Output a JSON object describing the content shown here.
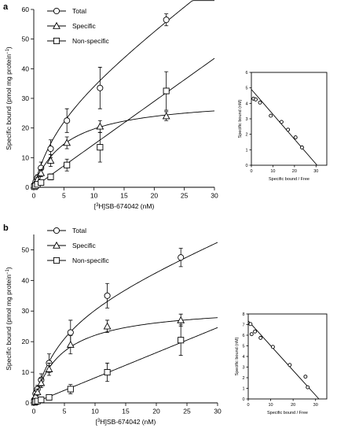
{
  "chart_data": [
    {
      "id": "a-main",
      "panel_label": "a",
      "type": "scatter",
      "xlabel_pre": "[",
      "xlabel_sup": "3",
      "xlabel_post": "H]SB-674042 (nM)",
      "ylabel_main": "Specific bound (pmol mg protein",
      "ylabel_sup": "−1",
      "ylabel_close": ")",
      "xlim": [
        0,
        30
      ],
      "ylim": [
        0,
        60
      ],
      "xticks": [
        0,
        5,
        10,
        15,
        20,
        25,
        30
      ],
      "yticks": [
        0,
        10,
        20,
        30,
        40,
        50,
        60
      ],
      "legend_position": "top-left",
      "series": [
        {
          "name": "Total",
          "marker": "circle",
          "x": [
            0.1,
            0.3,
            0.6,
            1.2,
            2.8,
            5.5,
            11,
            22
          ],
          "y": [
            0.8,
            1.8,
            3.2,
            6.5,
            13,
            22.5,
            33.5,
            56.5
          ],
          "err": [
            0.4,
            0.6,
            1,
            2,
            3,
            4,
            7,
            2
          ],
          "fit": {
            "kind": "total",
            "bmax": 27.5,
            "kd": 4.5,
            "ns": 1.5
          }
        },
        {
          "name": "Specific",
          "marker": "triangle",
          "x": [
            0.1,
            0.3,
            0.6,
            1.2,
            2.8,
            5.5,
            11,
            22
          ],
          "y": [
            0.6,
            1.5,
            2.6,
            4.8,
            9,
            15,
            20.5,
            24
          ],
          "err": [
            0.3,
            0.5,
            0.8,
            1.2,
            2,
            2,
            2,
            1.5
          ],
          "fit": {
            "kind": "hyperbola",
            "bmax": 30.5,
            "kd": 5.5
          }
        },
        {
          "name": "Non-specific",
          "marker": "square",
          "x": [
            0.1,
            0.3,
            0.6,
            1.2,
            2.8,
            5.5,
            11,
            22
          ],
          "y": [
            0.2,
            0.5,
            1,
            1.6,
            3.5,
            7.5,
            13.5,
            32.5
          ],
          "err": [
            0.2,
            0.3,
            0.5,
            0.8,
            1,
            2,
            5,
            6.5
          ],
          "fit": {
            "kind": "linear",
            "slope": 1.45
          }
        }
      ]
    },
    {
      "id": "a-inset",
      "type": "scatter",
      "xlabel": "Specific bound / Free",
      "ylabel": "Specific bound (nM)",
      "xlim": [
        0,
        35
      ],
      "ylim": [
        0,
        6
      ],
      "xticks": [
        0,
        10,
        20,
        30
      ],
      "yticks": [
        0,
        1,
        2,
        3,
        4,
        5,
        6
      ],
      "series": [
        {
          "marker": "circle",
          "x": [
            1,
            2,
            4,
            9,
            14,
            17,
            20.5,
            23.5
          ],
          "y": [
            4.3,
            4.25,
            4.05,
            3.2,
            2.8,
            2.3,
            1.8,
            1.15
          ],
          "fit": {
            "kind": "line",
            "x0": 0,
            "y0": 4.9,
            "x1": 30.5,
            "y1": 0
          }
        }
      ]
    },
    {
      "id": "b-main",
      "panel_label": "b",
      "type": "scatter",
      "xlabel_pre": "[",
      "xlabel_sup": "3",
      "xlabel_post": "H]SB-674042 (nM)",
      "ylabel_main": "Specific bound (pmol mg protein",
      "ylabel_sup": "−1",
      "ylabel_close": ")",
      "xlim": [
        0,
        30
      ],
      "ylim": [
        0,
        55
      ],
      "xticks": [
        0,
        5,
        10,
        15,
        20,
        25,
        30
      ],
      "yticks": [
        0,
        10,
        20,
        30,
        40,
        50
      ],
      "legend_position": "top-left",
      "series": [
        {
          "name": "Total",
          "marker": "circle",
          "x": [
            0.1,
            0.3,
            0.6,
            1.2,
            2.5,
            6,
            12,
            24
          ],
          "y": [
            1,
            3,
            4.5,
            7.5,
            13,
            23,
            35,
            47.5
          ],
          "err": [
            0.5,
            1,
            1.2,
            2,
            3,
            4,
            4,
            3
          ],
          "fit": {
            "kind": "total",
            "bmax": 32,
            "kd": 4.5,
            "ns": 0.82
          }
        },
        {
          "name": "Specific",
          "marker": "triangle",
          "x": [
            0.1,
            0.3,
            0.6,
            1.2,
            2.5,
            6,
            12,
            24
          ],
          "y": [
            0.8,
            2.2,
            3.5,
            6.5,
            11,
            19,
            25,
            27
          ],
          "err": [
            0.4,
            0.8,
            1,
            1.5,
            2,
            3,
            2,
            2
          ],
          "fit": {
            "kind": "hyperbola",
            "bmax": 32,
            "kd": 4.5
          }
        },
        {
          "name": "Non-specific",
          "marker": "square",
          "x": [
            0.1,
            0.3,
            0.6,
            1.2,
            2.5,
            6,
            12,
            24
          ],
          "y": [
            0.2,
            0.4,
            0.6,
            1,
            1.8,
            4.5,
            10,
            20.5
          ],
          "err": [
            0.2,
            0.2,
            0.3,
            0.4,
            0.8,
            1.5,
            3,
            5
          ],
          "fit": {
            "kind": "linear",
            "slope": 0.82
          }
        }
      ]
    },
    {
      "id": "b-inset",
      "type": "scatter",
      "xlabel": "Specific bound / Free",
      "ylabel": "Specific bound (nM)",
      "xlim": [
        0,
        35
      ],
      "ylim": [
        0,
        8
      ],
      "xticks": [
        0,
        10,
        20,
        30
      ],
      "yticks": [
        0,
        1,
        2,
        3,
        4,
        5,
        6,
        7,
        8
      ],
      "series": [
        {
          "marker": "circle",
          "x": [
            1,
            1.5,
            3,
            5.5,
            11,
            18.5,
            25.5,
            26.5
          ],
          "y": [
            7.05,
            6.1,
            6.35,
            5.75,
            4.9,
            3.2,
            2.1,
            1.1
          ],
          "fit": {
            "kind": "line",
            "x0": 0,
            "y0": 7.35,
            "x1": 31.5,
            "y1": 0
          }
        }
      ]
    }
  ]
}
